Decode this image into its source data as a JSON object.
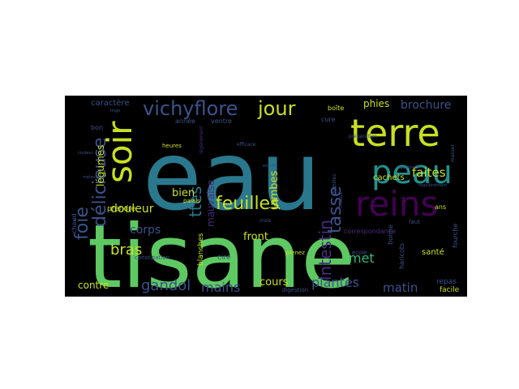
{
  "palette": {
    "background": "#000000",
    "page": "#ffffff",
    "green": "#5ec962",
    "teal": "#2a788e",
    "navy": "#3b528b",
    "purple": "#440154",
    "indigo": "#472d7b",
    "yellow": "#c8e020",
    "aqua": "#21918c",
    "mint": "#35b779"
  },
  "words": [
    {
      "text": "eau",
      "size": 1.0,
      "color": "teal",
      "vertical": false
    },
    {
      "text": "tisane",
      "size": 0.95,
      "color": "green",
      "vertical": false
    },
    {
      "text": "terre",
      "size": 0.45,
      "color": "yellow",
      "vertical": false
    },
    {
      "text": "peau",
      "size": 0.4,
      "color": "aqua",
      "vertical": false
    },
    {
      "text": "reins",
      "size": 0.4,
      "color": "purple",
      "vertical": false
    },
    {
      "text": "soir",
      "size": 0.38,
      "color": "yellow",
      "vertical": true
    },
    {
      "text": "vichyflore",
      "size": 0.25,
      "color": "navy",
      "vertical": false
    },
    {
      "text": "jour",
      "size": 0.24,
      "color": "yellow",
      "vertical": false
    },
    {
      "text": "feuilles",
      "size": 0.22,
      "color": "yellow",
      "vertical": false
    },
    {
      "text": "délicieuse",
      "size": 0.2,
      "color": "navy",
      "vertical": true
    },
    {
      "text": "foie",
      "size": 0.2,
      "color": "navy",
      "vertical": true
    },
    {
      "text": "tasse",
      "size": 0.2,
      "color": "navy",
      "vertical": true
    },
    {
      "text": "intestin",
      "size": 0.18,
      "color": "indigo",
      "vertical": true
    },
    {
      "text": "ttes",
      "size": 0.18,
      "color": "teal",
      "vertical": true
    },
    {
      "text": "gandol",
      "size": 0.16,
      "color": "navy",
      "vertical": false
    },
    {
      "text": "brochure",
      "size": 0.15,
      "color": "navy",
      "vertical": false
    },
    {
      "text": "faites",
      "size": 0.15,
      "color": "yellow",
      "vertical": false
    },
    {
      "text": "mains",
      "size": 0.15,
      "color": "navy",
      "vertical": false
    },
    {
      "text": "plantes",
      "size": 0.15,
      "color": "navy",
      "vertical": false
    },
    {
      "text": "matin",
      "size": 0.14,
      "color": "navy",
      "vertical": false
    },
    {
      "text": "bras",
      "size": 0.15,
      "color": "yellow",
      "vertical": false
    },
    {
      "text": "corps",
      "size": 0.13,
      "color": "navy",
      "vertical": false
    },
    {
      "text": "met",
      "size": 0.14,
      "color": "mint",
      "vertical": false
    },
    {
      "text": "douleur",
      "size": 0.13,
      "color": "yellow",
      "vertical": false
    },
    {
      "text": "bien",
      "size": 0.12,
      "color": "yellow",
      "vertical": false
    },
    {
      "text": "cours",
      "size": 0.12,
      "color": "yellow",
      "vertical": false
    },
    {
      "text": "front",
      "size": 0.12,
      "color": "yellow",
      "vertical": false
    },
    {
      "text": "jambes",
      "size": 0.12,
      "color": "yellow",
      "vertical": true
    },
    {
      "text": "mauvaise",
      "size": 0.11,
      "color": "indigo",
      "vertical": true
    },
    {
      "text": "légumes",
      "size": 0.1,
      "color": "yellow",
      "vertical": true
    },
    {
      "text": "contre",
      "size": 0.1,
      "color": "yellow",
      "vertical": false
    },
    {
      "text": "phies",
      "size": 0.1,
      "color": "yellow",
      "vertical": false
    },
    {
      "text": "caractère",
      "size": 0.08,
      "color": "navy",
      "vertical": false
    },
    {
      "text": "cachets",
      "size": 0.08,
      "color": "yellow",
      "vertical": false
    },
    {
      "text": "correspondance",
      "size": 0.07,
      "color": "indigo",
      "vertical": false
    },
    {
      "text": "santé",
      "size": 0.07,
      "color": "yellow",
      "vertical": false
    },
    {
      "text": "repas",
      "size": 0.07,
      "color": "navy",
      "vertical": false
    },
    {
      "text": "facile",
      "size": 0.07,
      "color": "yellow",
      "vertical": false
    },
    {
      "text": "prendre",
      "size": 0.07,
      "color": "yellow",
      "vertical": false
    },
    {
      "text": "année",
      "size": 0.06,
      "color": "navy",
      "vertical": false
    },
    {
      "text": "ventre",
      "size": 0.06,
      "color": "navy",
      "vertical": false
    },
    {
      "text": "boîte",
      "size": 0.06,
      "color": "yellow",
      "vertical": false
    },
    {
      "text": "cure",
      "size": 0.06,
      "color": "navy",
      "vertical": false
    },
    {
      "text": "heures",
      "size": 0.05,
      "color": "yellow",
      "vertical": false
    },
    {
      "text": "blanches",
      "size": 0.06,
      "color": "yellow",
      "vertical": true
    },
    {
      "text": "cire",
      "size": 0.06,
      "color": "navy",
      "vertical": false
    },
    {
      "text": "prenez",
      "size": 0.05,
      "color": "yellow",
      "vertical": false
    },
    {
      "text": "ecole",
      "size": 0.05,
      "color": "navy",
      "vertical": false
    },
    {
      "text": "digestion",
      "size": 0.05,
      "color": "navy",
      "vertical": false
    },
    {
      "text": "constipation",
      "size": 0.05,
      "color": "navy",
      "vertical": false
    },
    {
      "text": "chaud",
      "size": 0.05,
      "color": "navy",
      "vertical": true
    },
    {
      "text": "fourche",
      "size": 0.05,
      "color": "navy",
      "vertical": true
    },
    {
      "text": "haricots",
      "size": 0.05,
      "color": "navy",
      "vertical": true
    },
    {
      "text": "bonne",
      "size": 0.05,
      "color": "navy",
      "vertical": true
    },
    {
      "text": "ans",
      "size": 0.05,
      "color": "yellow",
      "vertical": false
    },
    {
      "text": "faut",
      "size": 0.05,
      "color": "navy",
      "vertical": false
    },
    {
      "text": "bon",
      "size": 0.05,
      "color": "navy",
      "vertical": false
    },
    {
      "text": "mois",
      "size": 0.04,
      "color": "navy",
      "vertical": false
    },
    {
      "text": "efficace",
      "size": 0.04,
      "color": "navy",
      "vertical": false
    },
    {
      "text": "palais",
      "size": 0.04,
      "color": "yellow",
      "vertical": false
    },
    {
      "text": "légèrement",
      "size": 0.04,
      "color": "indigo",
      "vertical": true
    },
    {
      "text": "préparation",
      "size": 0.04,
      "color": "navy",
      "vertical": false
    },
    {
      "text": "frileux",
      "size": 0.04,
      "color": "navy",
      "vertical": true
    },
    {
      "text": "familles",
      "size": 0.04,
      "color": "navy",
      "vertical": true
    },
    {
      "text": "masser",
      "size": 0.04,
      "color": "navy",
      "vertical": true
    },
    {
      "text": "linge",
      "size": 0.04,
      "color": "navy",
      "vertical": false
    },
    {
      "text": "ensuite",
      "size": 0.03,
      "color": "navy",
      "vertical": false
    },
    {
      "text": "régulièrement",
      "size": 0.03,
      "color": "navy",
      "vertical": false
    },
    {
      "text": "également",
      "size": 0.03,
      "color": "navy",
      "vertical": false
    },
    {
      "text": "couleur",
      "size": 0.03,
      "color": "navy",
      "vertical": false
    },
    {
      "text": "mélange",
      "size": 0.03,
      "color": "navy",
      "vertical": false
    }
  ]
}
